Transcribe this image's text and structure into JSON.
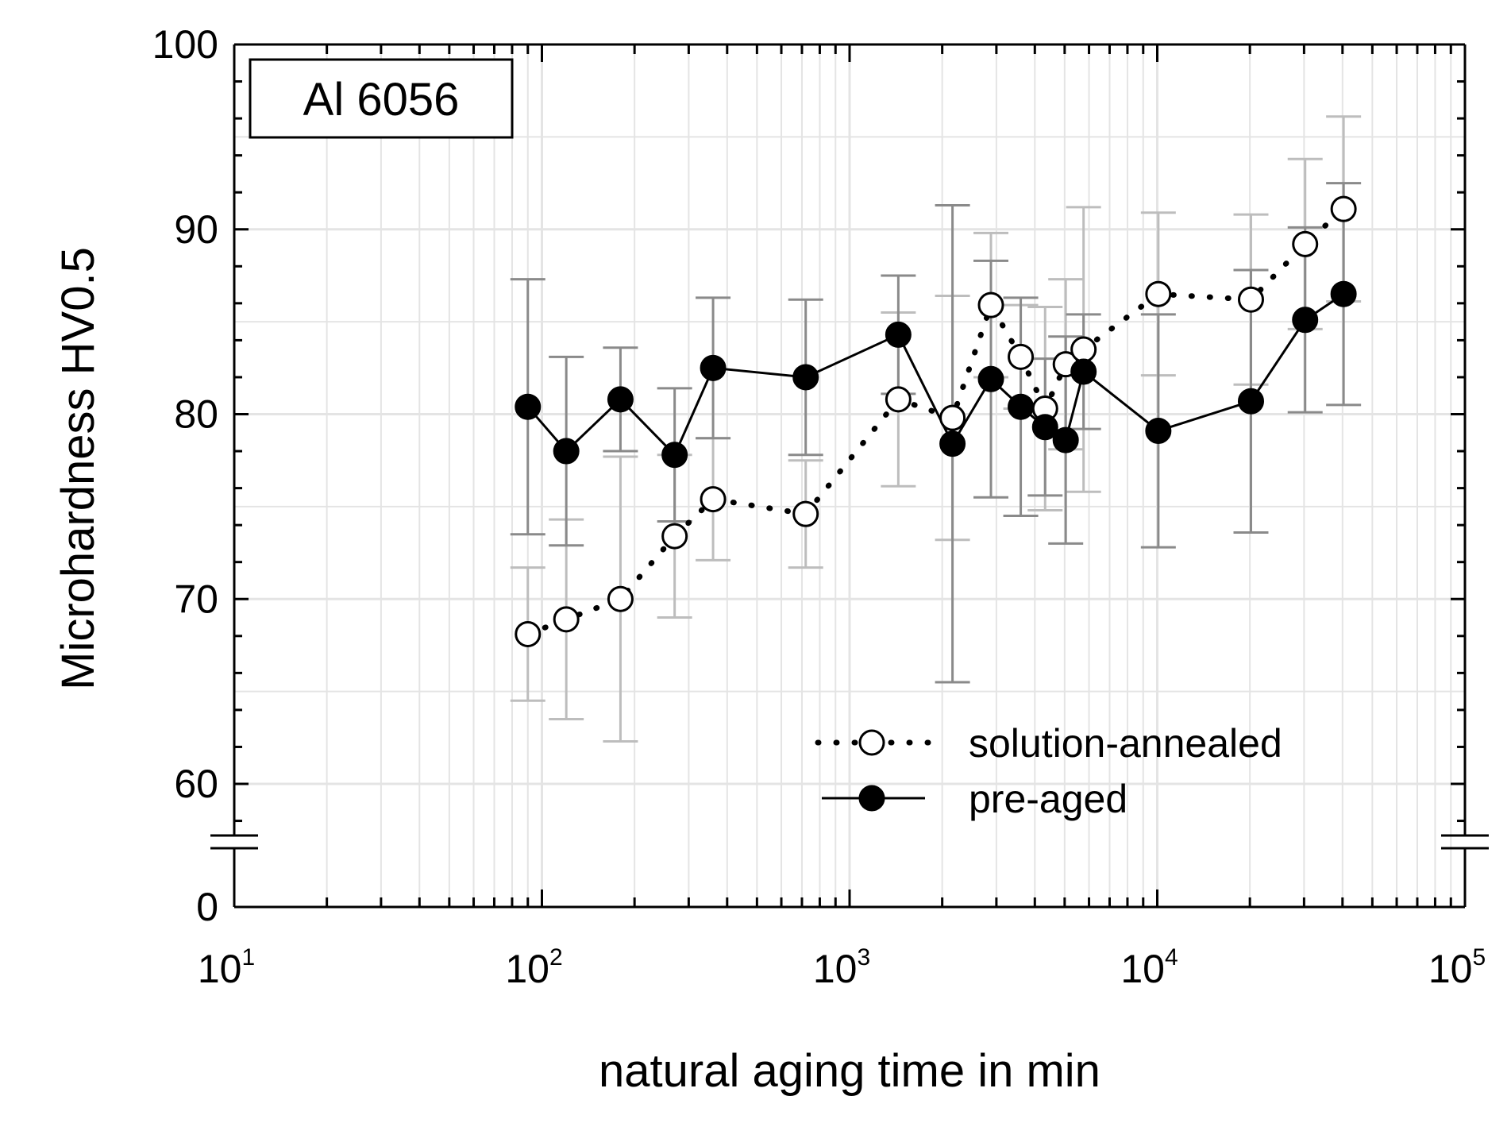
{
  "chart_data": {
    "type": "scatter",
    "title": "",
    "annotation": "Al 6056",
    "xlabel": "natural aging time in min",
    "ylabel": "Microhardness HV0.5",
    "xscale": "log",
    "xlim": [
      10,
      100000
    ],
    "ylim": [
      0,
      100
    ],
    "axis_break": {
      "lower": 0,
      "upper": 57
    },
    "y_ticks": [
      0,
      60,
      70,
      80,
      90,
      100
    ],
    "x_ticks": [
      {
        "base": "10",
        "exp": "1",
        "value": 10
      },
      {
        "base": "10",
        "exp": "2",
        "value": 100
      },
      {
        "base": "10",
        "exp": "3",
        "value": 1000
      },
      {
        "base": "10",
        "exp": "4",
        "value": 10000
      },
      {
        "base": "10",
        "exp": "5",
        "value": 100000
      }
    ],
    "grid": true,
    "legend_position": "bottom-right",
    "series": [
      {
        "name": "solution-annealed",
        "marker": "open-circle",
        "line": "dotted",
        "x": [
          90,
          120,
          180,
          270,
          360,
          720,
          1440,
          2160,
          2880,
          3600,
          4320,
          5040,
          5760,
          10080,
          20160,
          30240,
          40320
        ],
        "y": [
          68.1,
          68.9,
          70.0,
          73.4,
          75.4,
          74.6,
          80.8,
          79.8,
          85.9,
          83.1,
          80.3,
          82.7,
          83.5,
          86.5,
          86.2,
          89.2,
          91.1
        ],
        "err": [
          3.6,
          5.4,
          7.7,
          4.4,
          3.3,
          2.9,
          4.7,
          6.6,
          3.9,
          2.8,
          5.5,
          4.6,
          7.7,
          4.4,
          4.6,
          4.6,
          5.0
        ]
      },
      {
        "name": "pre-aged",
        "marker": "filled-circle",
        "line": "solid",
        "x": [
          90,
          120,
          180,
          270,
          360,
          720,
          1440,
          2160,
          2880,
          3600,
          4320,
          5040,
          5760,
          10080,
          20160,
          30240,
          40320
        ],
        "y": [
          80.4,
          78.0,
          80.8,
          77.8,
          82.5,
          82.0,
          84.3,
          78.4,
          81.9,
          80.4,
          79.3,
          78.6,
          82.3,
          79.1,
          80.7,
          85.1,
          86.5
        ],
        "err": [
          6.9,
          5.1,
          2.8,
          3.6,
          3.8,
          4.2,
          3.2,
          12.9,
          6.4,
          5.9,
          3.7,
          5.6,
          3.1,
          6.3,
          7.1,
          5.0,
          6.0
        ]
      }
    ],
    "colors": {
      "axis": "#000000",
      "grid": "#e4e4e4",
      "line": "#000000",
      "err_solution_annealed": "#bdbdbd",
      "err_pre_aged": "#8a8a8a"
    }
  }
}
